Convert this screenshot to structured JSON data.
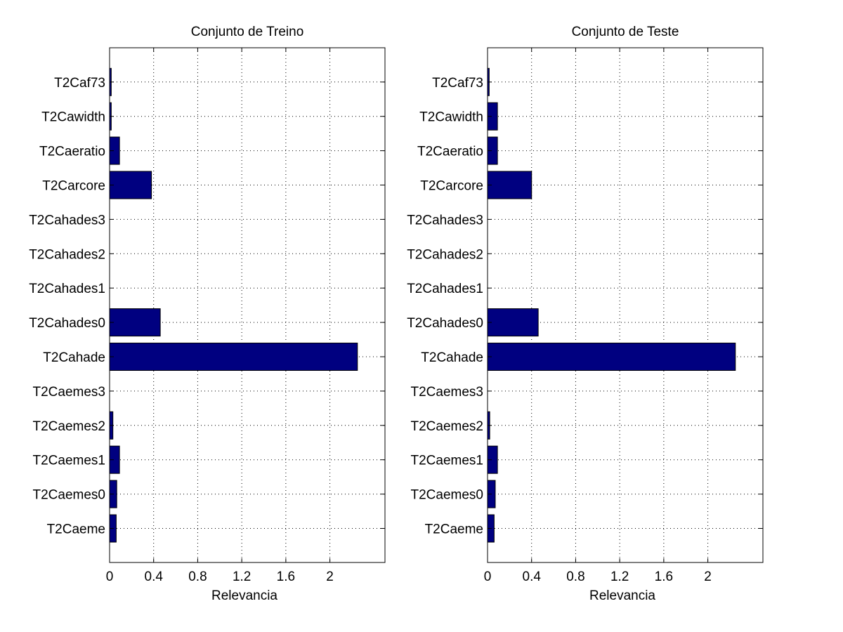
{
  "chart_data": [
    {
      "type": "bar",
      "orientation": "horizontal",
      "title": "Conjunto de Treino",
      "xlabel": "Relevancia",
      "ylabel": "",
      "xlim": [
        0,
        2.5
      ],
      "xticks": [
        0,
        0.4,
        0.8,
        1.2,
        1.6,
        2
      ],
      "xtick_labels": [
        "0",
        "0.4",
        "0.8",
        "1.2",
        "1.6",
        "2"
      ],
      "grid": true,
      "categories": [
        "T2Caeme",
        "T2Caemes0",
        "T2Caemes1",
        "T2Caemes2",
        "T2Caemes3",
        "T2Cahade",
        "T2Cahades0",
        "T2Cahades1",
        "T2Cahades2",
        "T2Cahades3",
        "T2Carcore",
        "T2Caeratio",
        "T2Cawidth",
        "T2Caf73"
      ],
      "values": [
        0.06,
        0.065,
        0.09,
        0.03,
        0,
        2.25,
        0.46,
        0,
        0,
        0,
        0.38,
        0.09,
        0.015,
        0.015
      ],
      "bar_color": "#000080"
    },
    {
      "type": "bar",
      "orientation": "horizontal",
      "title": "Conjunto de Teste",
      "xlabel": "Relevancia",
      "ylabel": "",
      "xlim": [
        0,
        2.5
      ],
      "xticks": [
        0,
        0.4,
        0.8,
        1.2,
        1.6,
        2
      ],
      "xtick_labels": [
        "0",
        "0.4",
        "0.8",
        "1.2",
        "1.6",
        "2"
      ],
      "grid": true,
      "categories": [
        "T2Caeme",
        "T2Caemes0",
        "T2Caemes1",
        "T2Caemes2",
        "T2Caemes3",
        "T2Cahade",
        "T2Cahades0",
        "T2Cahades1",
        "T2Cahades2",
        "T2Cahades3",
        "T2Carcore",
        "T2Caeratio",
        "T2Cawidth",
        "T2Caf73"
      ],
      "values": [
        0.06,
        0.07,
        0.09,
        0.02,
        0,
        2.25,
        0.46,
        0,
        0,
        0,
        0.4,
        0.09,
        0.09,
        0.015
      ],
      "bar_color": "#000080"
    }
  ]
}
